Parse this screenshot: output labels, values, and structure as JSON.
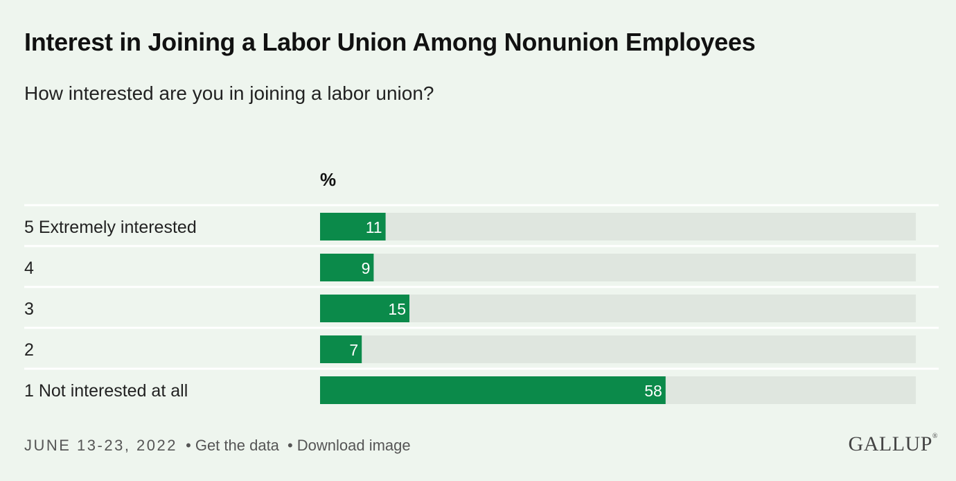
{
  "title": "Interest in Joining a Labor Union Among Nonunion Employees",
  "subtitle": "How interested are you in joining a labor union?",
  "footer": {
    "date": "JUNE 13-23, 2022",
    "separator": "•",
    "get_data": "Get the data",
    "download": "Download image"
  },
  "logo": "GALLUP",
  "colors": {
    "bar": "#0b8a4a",
    "track": "#dfe6df",
    "background": "#eef5ee",
    "divider": "#ffffff",
    "value_text": "#ffffff"
  },
  "chart_data": {
    "type": "bar",
    "orientation": "horizontal",
    "unit_label": "%",
    "categories": [
      "5 Extremely interested",
      "4",
      "3",
      "2",
      "1 Not interested at all"
    ],
    "values": [
      11,
      9,
      15,
      7,
      58
    ],
    "xlim": [
      0,
      100
    ],
    "grid": false,
    "legend": "none"
  }
}
